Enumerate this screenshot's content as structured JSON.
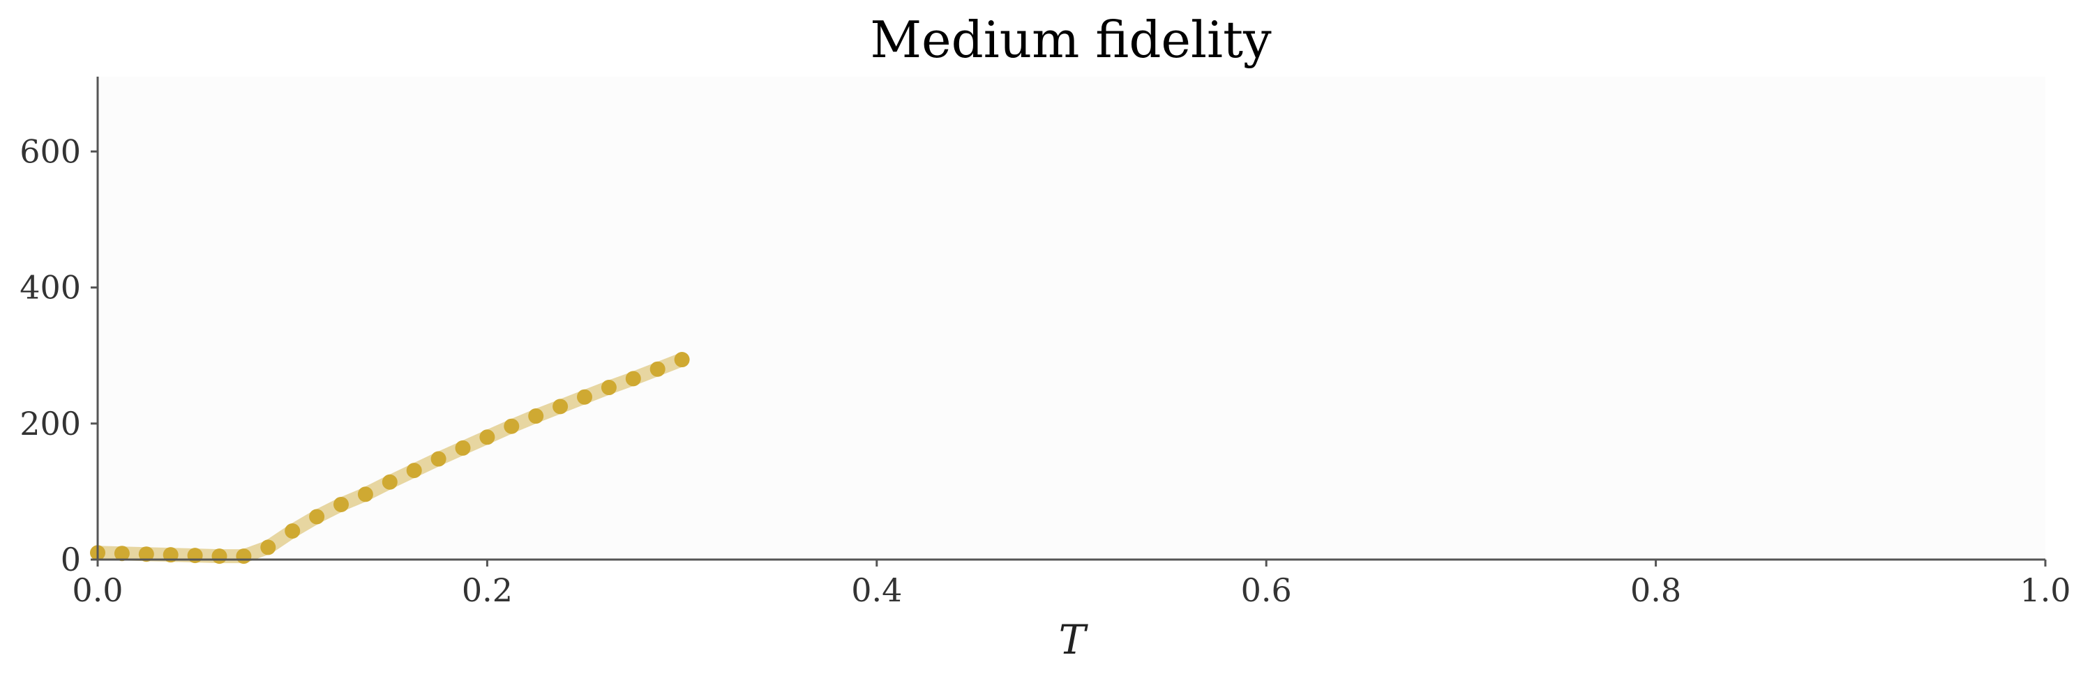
{
  "chart_data": {
    "type": "line",
    "title": "Medium fidelity",
    "xlabel": "T",
    "ylabel": "",
    "xlim": [
      0.0,
      1.0
    ],
    "ylim": [
      0,
      710
    ],
    "x_ticks": [
      {
        "value": 0.0,
        "label": "0.0"
      },
      {
        "value": 0.2,
        "label": "0.2"
      },
      {
        "value": 0.4,
        "label": "0.4"
      },
      {
        "value": 0.6,
        "label": "0.6"
      },
      {
        "value": 0.8,
        "label": "0.8"
      },
      {
        "value": 1.0,
        "label": "1.0"
      }
    ],
    "y_ticks": [
      {
        "value": 0,
        "label": "0"
      },
      {
        "value": 200,
        "label": "200"
      },
      {
        "value": 400,
        "label": "400"
      },
      {
        "value": 600,
        "label": "600"
      }
    ],
    "grid": false,
    "legend": "none",
    "series": [
      {
        "color": "#cfa932",
        "x": [
          0.0,
          0.0125,
          0.025,
          0.0375,
          0.05,
          0.0625,
          0.075,
          0.0875,
          0.1,
          0.1125,
          0.125,
          0.1375,
          0.15,
          0.1625,
          0.175,
          0.1875,
          0.2,
          0.2125,
          0.225,
          0.2375,
          0.25,
          0.2625,
          0.275,
          0.2875,
          0.3
        ],
        "y": [
          10,
          9,
          8,
          7,
          6,
          5,
          5,
          18,
          42,
          63,
          81,
          96,
          114,
          131,
          148,
          164,
          180,
          196,
          211,
          225,
          239,
          253,
          266,
          280,
          294
        ]
      }
    ]
  }
}
